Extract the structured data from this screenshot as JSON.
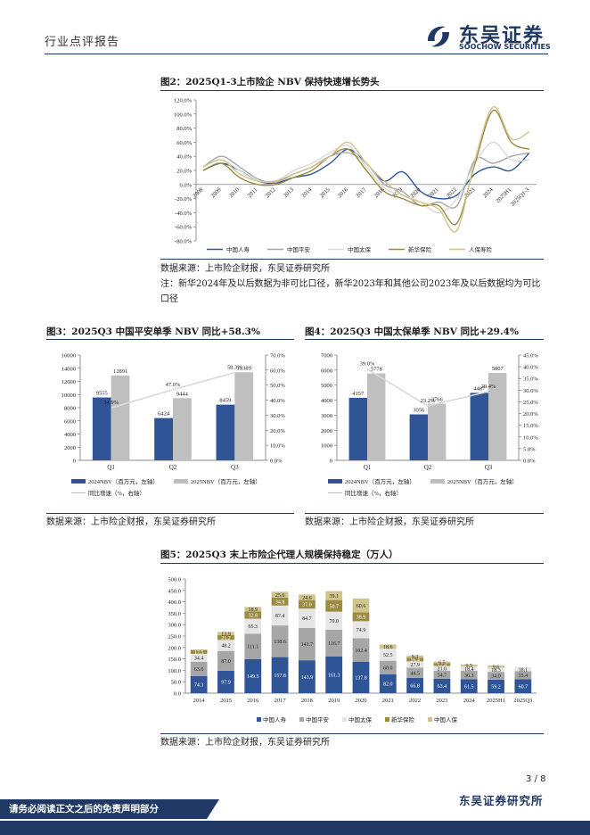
{
  "header": {
    "doc_type": "行业点评报告",
    "logo_cn": "东吴证券",
    "logo_en": "SOOCHOW SECURITIES"
  },
  "figures": {
    "fig2": {
      "title": "图2：2025Q1-3上市险企 NBV 保持快速增长势头",
      "source": "数据来源：上市险企财报，东吴证券研究所",
      "note": "注：新华2024年及以后数据为非可比口径，新华2023年和其他公司2023年及以后数据均为可比口径"
    },
    "fig3": {
      "title": "图3：2025Q3 中国平安单季 NBV 同比+58.3%",
      "source": "数据来源：上市险企财报，东吴证券研究所"
    },
    "fig4": {
      "title": "图4：2025Q3 中国太保单季 NBV 同比+29.4%",
      "source": "数据来源：上市险企财报，东吴证券研究所"
    },
    "fig5": {
      "title": "图5：2025Q3 末上市险企代理人规模保持稳定（万人）",
      "source": "数据来源：上市险企财报，东吴证券研究所"
    }
  },
  "chart_data": [
    {
      "id": "fig2",
      "type": "line",
      "categories": [
        "2008",
        "2009",
        "2010",
        "2011",
        "2012",
        "2013",
        "2014",
        "2015",
        "2016",
        "2017",
        "2018",
        "2019",
        "2020",
        "2021",
        "2022",
        "2023",
        "2024",
        "2025H1",
        "2025Q1-3"
      ],
      "y_ticks": [
        "120.0%",
        "100.0%",
        "80.0%",
        "60.0%",
        "40.0%",
        "20.0%",
        "0.0%",
        "-20.0%",
        "-40.0%",
        "-60.0%",
        "-80.0%"
      ],
      "ylim": [
        -80,
        120
      ],
      "series": [
        {
          "name": "中国人寿",
          "color": "#2f5597",
          "values": [
            20,
            30,
            20,
            5,
            2,
            10,
            15,
            30,
            50,
            30,
            5,
            18,
            -10,
            -20,
            -15,
            15,
            25,
            20,
            45
          ]
        },
        {
          "name": "中国平安",
          "color": "#a6a6a6",
          "values": [
            25,
            40,
            25,
            8,
            3,
            15,
            25,
            40,
            45,
            30,
            0,
            -10,
            -30,
            -25,
            -30,
            35,
            30,
            40,
            45
          ]
        },
        {
          "name": "中国太保",
          "color": "#d9d9d9",
          "values": [
            25,
            35,
            20,
            5,
            5,
            20,
            30,
            45,
            55,
            25,
            -5,
            -15,
            -25,
            -40,
            -20,
            30,
            60,
            35,
            35
          ]
        },
        {
          "name": "新华保险",
          "color": "#9c8c42",
          "values": [
            20,
            30,
            10,
            0,
            0,
            10,
            20,
            40,
            50,
            20,
            -10,
            -20,
            -30,
            -30,
            -55,
            30,
            105,
            60,
            50
          ]
        },
        {
          "name": "人保寿险",
          "color": "#cfc48c",
          "values": [
            25,
            35,
            15,
            5,
            5,
            15,
            25,
            40,
            60,
            30,
            5,
            -15,
            -25,
            -35,
            -65,
            35,
            110,
            65,
            75
          ]
        }
      ]
    },
    {
      "id": "fig3",
      "type": "bar",
      "categories": [
        "Q1",
        "Q2",
        "Q3"
      ],
      "left_ticks": [
        "16000",
        "14000",
        "12000",
        "10000",
        "8000",
        "6000",
        "4000",
        "2000",
        "0"
      ],
      "right_ticks": [
        "70.0%",
        "60.0%",
        "50.0%",
        "40.0%",
        "30.0%",
        "20.0%",
        "10.0%",
        "0.0%"
      ],
      "ylim_left": [
        0,
        16000
      ],
      "ylim_right": [
        0,
        70
      ],
      "series": [
        {
          "name": "2024NBV（百万元，左轴）",
          "color": "#2f5597",
          "values": [
            9555,
            6424,
            8459
          ],
          "labels": [
            "9555",
            "6424",
            "8459"
          ]
        },
        {
          "name": "2025NBV（百万元，左轴）",
          "color": "#bfbfbf",
          "values": [
            12891,
            9444,
            13389
          ],
          "labels": [
            "12891",
            "9444",
            "13389"
          ]
        },
        {
          "name": "同比增速（%，右轴）",
          "color": "#d9d9d9",
          "type": "line",
          "values": [
            34.9,
            47.0,
            58.3
          ],
          "labels": [
            "34.9%",
            "47.0%",
            "58.3%"
          ]
        }
      ]
    },
    {
      "id": "fig4",
      "type": "bar",
      "categories": [
        "Q1",
        "Q2",
        "Q3"
      ],
      "left_ticks": [
        "7000",
        "6000",
        "5000",
        "4000",
        "3000",
        "2000",
        "1000",
        "0"
      ],
      "right_ticks": [
        "45.0%",
        "40.0%",
        "35.0%",
        "30.0%",
        "25.0%",
        "20.0%",
        "15.0%",
        "10.0%",
        "5.0%",
        "0.0%"
      ],
      "ylim_left": [
        0,
        7000
      ],
      "ylim_right": [
        0,
        45
      ],
      "series": [
        {
          "name": "2024NBV（百万元，左轴）",
          "color": "#2f5597",
          "values": [
            4157,
            3056,
            4487
          ],
          "labels": [
            "4157",
            "3056",
            "4487"
          ]
        },
        {
          "name": "2025NBV（百万元，左轴）",
          "color": "#bfbfbf",
          "values": [
            5778,
            3766,
            5807
          ],
          "labels": [
            "5778",
            "3766",
            "5807"
          ]
        },
        {
          "name": "同比增速（%，右轴）",
          "color": "#d9d9d9",
          "type": "line",
          "values": [
            39.0,
            23.2,
            29.4
          ],
          "labels": [
            "39.0%",
            "23.2%",
            "29.4%"
          ]
        }
      ]
    },
    {
      "id": "fig5",
      "type": "bar",
      "stacked": true,
      "categories": [
        "2014",
        "2015",
        "2016",
        "2017",
        "2018",
        "2019",
        "2020",
        "2021",
        "2022",
        "2023",
        "2024",
        "2025H1",
        "2025Q3"
      ],
      "y_ticks": [
        "500.0",
        "450.0",
        "400.0",
        "350.0",
        "300.0",
        "250.0",
        "200.0",
        "150.0",
        "100.0",
        "50.0",
        "0.0"
      ],
      "ylim": [
        0,
        500
      ],
      "series": [
        {
          "name": "中国人寿",
          "color": "#2f5597",
          "values": [
            74.3,
            97.9,
            149.5,
            157.8,
            143.9,
            161.3,
            137.8,
            82.0,
            66.8,
            63.4,
            61.5,
            59.2,
            60.7
          ]
        },
        {
          "name": "中国平安",
          "color": "#a6a6a6",
          "values": [
            63.6,
            87.0,
            111.1,
            138.6,
            141.7,
            116.7,
            102.4,
            60.0,
            44.5,
            34.7,
            36.3,
            34.0,
            35.4
          ]
        },
        {
          "name": "中国太保",
          "color": "#e7e6e6",
          "values": [
            34.4,
            48.2,
            65.3,
            87.4,
            84.7,
            79.0,
            74.9,
            52.5,
            27.9,
            21.0,
            18.4,
            18.3,
            18.1
          ]
        },
        {
          "name": "新华保险",
          "color": "#9c8c42",
          "values": [
            17.5,
            21.2,
            32.8,
            34.8,
            37.0,
            50.7,
            38.9,
            null,
            16.4,
            12.8,
            null,
            null,
            null
          ]
        },
        {
          "name": "中国人保",
          "color": "#cfc48c",
          "values": [
            null,
            13.9,
            18.9,
            25.6,
            24.6,
            39.1,
            60.6,
            18.6,
            9.3,
            6.5,
            9.5,
            9.6,
            null
          ]
        }
      ]
    }
  ],
  "footer": {
    "page": "3 / 8",
    "org": "东吴证券研究所",
    "disclaimer": "请务必阅读正文之后的免责声明部分"
  }
}
